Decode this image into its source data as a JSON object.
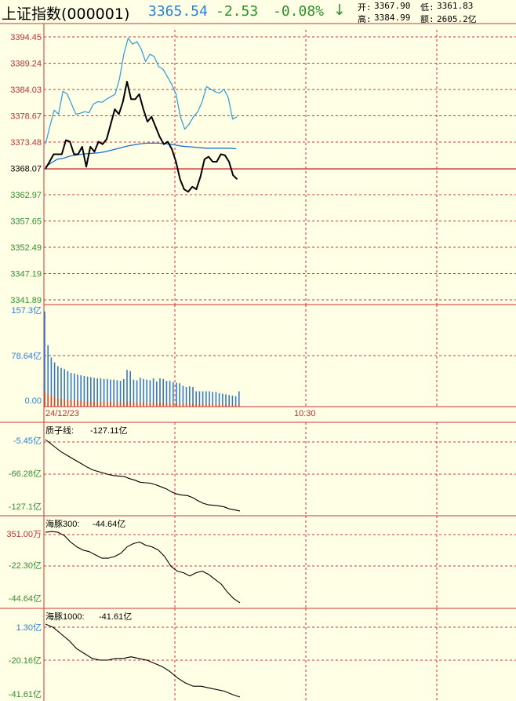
{
  "header": {
    "title": "上证指数(000001)",
    "price": "3365.54",
    "change": "-2.53",
    "change_pct": "-0.08%",
    "arrow": "↓",
    "open_label": "开:",
    "open": "3367.90",
    "low_label": "低:",
    "low": "3361.83",
    "high_label": "高:",
    "high": "3384.99",
    "amount_label": "额:",
    "amount": "2605.2亿"
  },
  "colors": {
    "bg": "#ffffe6",
    "grid": "#cc3333",
    "price": "#000000",
    "high_line": "#2a9bd8",
    "avg_line": "#1e6fd0",
    "vol_up": "#d24a2a",
    "vol_down": "#3478c8",
    "down_text": "#2f8f2f"
  },
  "chart_data": [
    {
      "type": "line",
      "name": "intraday-price",
      "ylim": [
        3341.89,
        3394.45
      ],
      "yticks": [
        "3394.45",
        "3389.24",
        "3384.03",
        "3378.67",
        "3373.48",
        "3368.07",
        "3362.97",
        "3357.65",
        "3352.49",
        "3347.19",
        "3341.89"
      ],
      "prev_close": 3368.07,
      "series": [
        {
          "key": "price",
          "values": [
            3368.1,
            3369.5,
            3371.0,
            3371.0,
            3371.0,
            3373.8,
            3373.5,
            3371.0,
            3371.0,
            3372.5,
            3368.5,
            3372.5,
            3371.5,
            3373.5,
            3373.0,
            3374.0,
            3377.0,
            3380.0,
            3379.0,
            3381.5,
            3385.5,
            3382.0,
            3382.0,
            3383.0,
            3380.0,
            3377.5,
            3378.5,
            3376.5,
            3374.5,
            3373.0,
            3373.5,
            3372.0,
            3369.5,
            3366.0,
            3364.0,
            3363.5,
            3364.5,
            3364.0,
            3366.5,
            3370.0,
            3370.5,
            3369.5,
            3369.5,
            3371.0,
            3370.8,
            3369.5,
            3366.8,
            3366.0
          ]
        },
        {
          "key": "upper",
          "values": [
            3373.0,
            3376.5,
            3379.8,
            3379.0,
            3383.6,
            3383.0,
            3381.0,
            3379.0,
            3379.2,
            3379.5,
            3379.3,
            3381.0,
            3381.5,
            3381.4,
            3382.0,
            3382.5,
            3383.0,
            3386.0,
            3391.0,
            3394.2,
            3393.0,
            3393.5,
            3392.0,
            3389.5,
            3391.0,
            3390.5,
            3388.5,
            3388.0,
            3386.5,
            3385.0,
            3383.0,
            3378.5,
            3376.0,
            3377.0,
            3378.5,
            3379.5,
            3381.5,
            3384.5,
            3384.0,
            3383.5,
            3383.2,
            3384.0,
            3382.3,
            3378.0,
            3378.5
          ]
        },
        {
          "key": "avg",
          "values": [
            3368.5,
            3369.3,
            3370.0,
            3370.2,
            3370.6,
            3370.8,
            3371.0,
            3371.1,
            3371.2,
            3371.3,
            3371.5,
            3371.8,
            3372.1,
            3372.4,
            3372.7,
            3372.9,
            3373.1,
            3373.2,
            3373.2,
            3373.2,
            3373.1,
            3373.0,
            3372.8,
            3372.6,
            3372.5,
            3372.4,
            3372.3,
            3372.2,
            3372.2,
            3372.2,
            3372.2,
            3372.2,
            3372.1
          ]
        }
      ]
    },
    {
      "type": "bar",
      "name": "volume",
      "unit": "亿",
      "ylim": [
        0,
        157.3
      ],
      "yticks": [
        "157.3亿",
        "78.64亿",
        "0.00"
      ],
      "values": [
        155,
        100,
        80,
        72,
        66,
        63,
        61,
        58,
        55,
        54,
        52,
        51,
        50,
        49,
        48,
        47,
        46,
        46,
        45,
        45,
        44,
        44,
        43,
        42,
        45,
        60,
        58,
        44,
        43,
        47,
        45,
        44,
        43,
        46,
        41,
        46,
        45,
        42,
        42,
        40,
        39,
        38,
        34,
        32,
        33,
        32,
        25,
        25,
        25,
        25,
        25,
        24,
        24,
        22,
        21,
        20,
        19,
        18,
        17,
        25
      ],
      "red_values": [
        24,
        21,
        18,
        16,
        14,
        13,
        12,
        12,
        11,
        11,
        10,
        10,
        9,
        9,
        9,
        9,
        8,
        8,
        8,
        8,
        8,
        7,
        7,
        7,
        7,
        9,
        9,
        7,
        7,
        7,
        7,
        7,
        6,
        7,
        6,
        7,
        7,
        6,
        6,
        6,
        6,
        6,
        5,
        5,
        5,
        5,
        4,
        4,
        4,
        4,
        4,
        4,
        4,
        4,
        3,
        3,
        3,
        3,
        3,
        4
      ],
      "xticks": [
        "24/12/23",
        "10:30"
      ]
    },
    {
      "type": "line",
      "name": "qualityline",
      "title": "质子线:",
      "value_text": "-127.11亿",
      "ylim": [
        -127.1,
        12
      ],
      "yticks": [
        "-5.45亿",
        "-66.28亿",
        "-127.1亿"
      ],
      "values": [
        12,
        4,
        -4,
        -12,
        -18,
        -24,
        -30,
        -36,
        -42,
        -47,
        -50,
        -53,
        -56,
        -58,
        -59,
        -60,
        -64,
        -67,
        -71,
        -72,
        -73,
        -76,
        -80,
        -84,
        -90,
        -94,
        -96,
        -97,
        -101,
        -107,
        -112,
        -115,
        -116,
        -117,
        -119,
        -123,
        -125,
        -127
      ]
    },
    {
      "type": "line",
      "name": "haitun300",
      "title": "海豚300:",
      "value_text": "-44.64亿",
      "ylim": [
        -44.64,
        0.0351
      ],
      "yticks": [
        "351.00万",
        "-22.30亿",
        "-44.64亿"
      ],
      "values": [
        -1,
        -0.5,
        -1,
        -3,
        -7,
        -10,
        -12,
        -13,
        -15,
        -17,
        -17,
        -16,
        -14,
        -10,
        -8,
        -7,
        -9,
        -10,
        -12,
        -16,
        -22,
        -25,
        -26,
        -28,
        -26,
        -25,
        -27,
        -30,
        -33,
        -38,
        -42,
        -44.6
      ]
    },
    {
      "type": "line",
      "name": "haitun1000",
      "title": "海豚1000:",
      "value_text": "-41.61亿",
      "ylim": [
        -41.61,
        3
      ],
      "yticks": [
        "1.30亿",
        "-20.16亿",
        "-41.61亿"
      ],
      "values": [
        3,
        1,
        -3,
        -7,
        -12,
        -15,
        -18,
        -19,
        -19,
        -18,
        -18,
        -17,
        -18,
        -19,
        -21,
        -23,
        -26,
        -30,
        -33,
        -35,
        -35,
        -36,
        -37,
        -38,
        -40,
        -41.6
      ]
    }
  ]
}
